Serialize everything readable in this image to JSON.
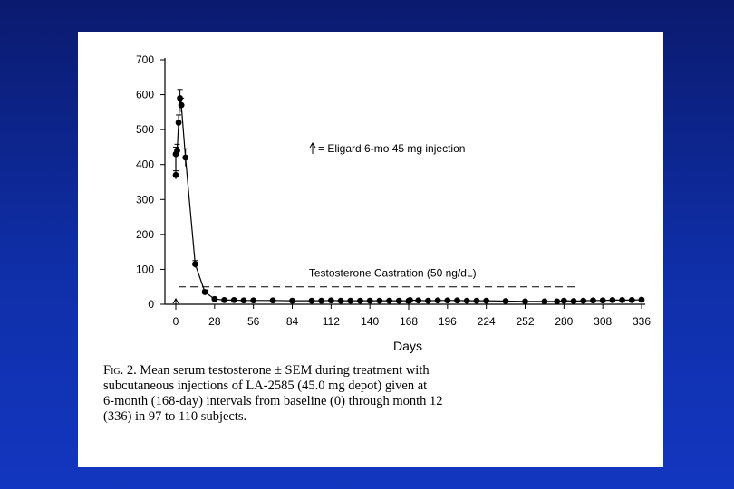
{
  "chart_data": {
    "type": "line",
    "title": "",
    "xlabel": "Days",
    "ylabel": "",
    "xlim": [
      0,
      336
    ],
    "ylim": [
      0,
      700
    ],
    "x_ticks": [
      0,
      28,
      56,
      84,
      112,
      140,
      168,
      196,
      224,
      252,
      280,
      308,
      336
    ],
    "y_ticks": [
      0,
      100,
      200,
      300,
      400,
      500,
      600,
      700
    ],
    "grid": false,
    "legend": "none",
    "series": [
      {
        "x": [
          0,
          0,
          1,
          2,
          3,
          4,
          7,
          14,
          21,
          28,
          35,
          42,
          49,
          56,
          70,
          84,
          98,
          105,
          112,
          119,
          126,
          133,
          140,
          147,
          154,
          161,
          168,
          169,
          175,
          182,
          189,
          196,
          203,
          210,
          217,
          224,
          238,
          252,
          266,
          275,
          280,
          287,
          294,
          301,
          308,
          315,
          322,
          329,
          336
        ],
        "y": [
          370,
          430,
          440,
          520,
          590,
          570,
          420,
          115,
          35,
          15,
          12,
          12,
          11,
          11,
          11,
          10,
          10,
          10,
          11,
          10,
          10,
          10,
          10,
          10,
          10,
          10,
          10,
          12,
          11,
          10,
          11,
          11,
          11,
          10,
          10,
          10,
          9,
          8,
          8,
          8,
          10,
          9,
          10,
          11,
          11,
          12,
          12,
          12,
          13
        ],
        "error": [
          12,
          20,
          18,
          22,
          25,
          20,
          25,
          10,
          6,
          3,
          2,
          2,
          2,
          2,
          2,
          2,
          2,
          2,
          2,
          2,
          2,
          2,
          2,
          2,
          2,
          2,
          2,
          2,
          2,
          2,
          2,
          2,
          2,
          2,
          2,
          2,
          2,
          2,
          2,
          2,
          2,
          2,
          2,
          2,
          2,
          2,
          2,
          2,
          2
        ]
      }
    ],
    "threshold": {
      "y": 50,
      "x_end": 290,
      "label": "Testosterone Castration (50 ng/dL)"
    },
    "injection_days": [
      0,
      168
    ],
    "annotations": [
      {
        "text": "= Eligard 6-mo 45 mg injection"
      }
    ]
  },
  "caption": {
    "lines": [
      [
        "Fig.",
        " 2. Mean serum testosterone ± SEM during treatment with"
      ],
      [
        "",
        "subcutaneous injections of LA-2585 (45.0 mg depot) given at"
      ],
      [
        "",
        "6-month (168-day) intervals from baseline (0) through month 12"
      ],
      [
        "",
        "(336) in 97 to 110 subjects."
      ]
    ]
  },
  "colors": {
    "background": "#0f2fa8",
    "panel": "#ffffff",
    "ink": "#000000"
  }
}
